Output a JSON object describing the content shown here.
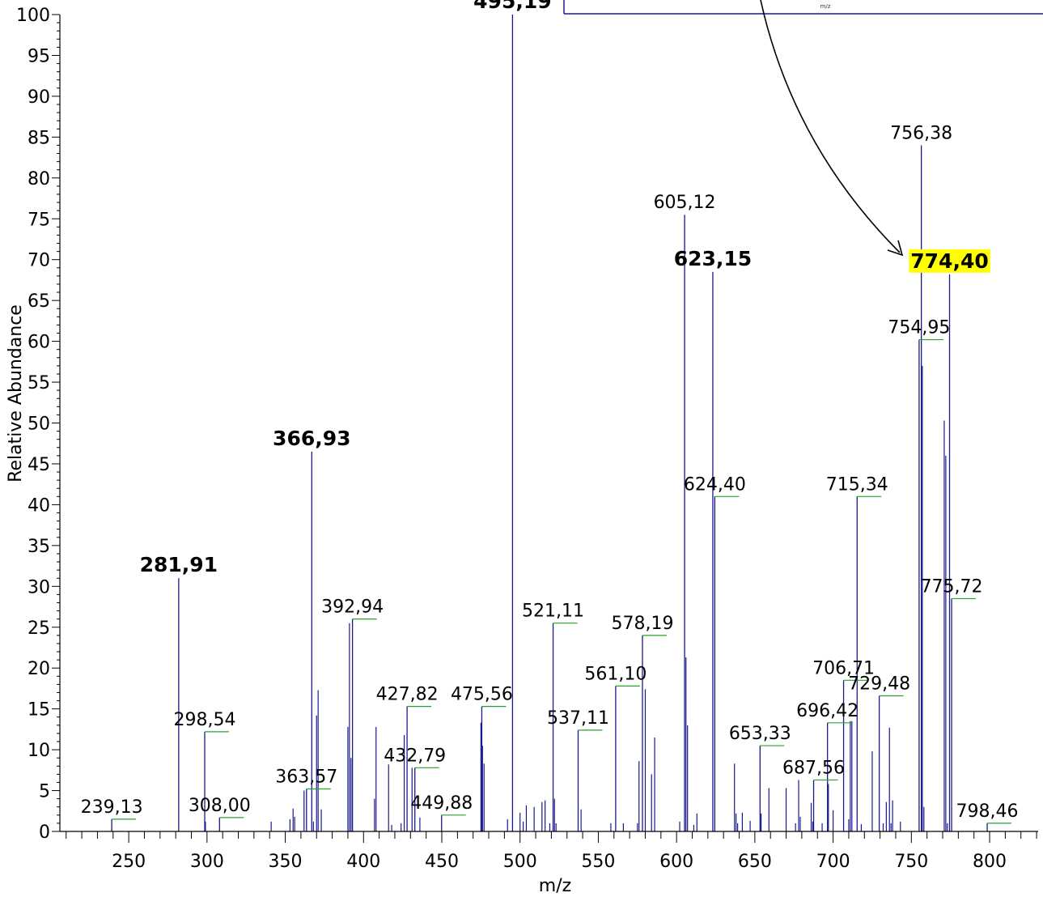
{
  "chart_data": {
    "type": "bar",
    "xlabel": "m/z",
    "ylabel": "Relative Abundance",
    "xlim": [
      206,
      831
    ],
    "ylim": [
      0,
      100
    ],
    "xticks": [
      250,
      300,
      350,
      400,
      450,
      500,
      550,
      600,
      650,
      700,
      750,
      800
    ],
    "yticks": [
      0,
      5,
      10,
      15,
      20,
      25,
      30,
      35,
      40,
      45,
      50,
      55,
      60,
      65,
      70,
      75,
      80,
      85,
      90,
      95,
      100
    ],
    "colors": {
      "peak": "#1a1a8c",
      "label_underline": "#2ca02c",
      "highlight": "#ffff00"
    },
    "inset": {
      "axis_label": "m/z"
    },
    "labeled_peaks": [
      {
        "mz": 239.13,
        "y": 1.5,
        "label": "239,13"
      },
      {
        "mz": 281.91,
        "y": 31,
        "label": "281,91",
        "bold": true
      },
      {
        "mz": 298.54,
        "y": 12.2,
        "label": "298,54"
      },
      {
        "mz": 308.0,
        "y": 1.7,
        "label": "308,00"
      },
      {
        "mz": 363.57,
        "y": 5.2,
        "label": "363,57"
      },
      {
        "mz": 366.93,
        "y": 46.5,
        "label": "366,93",
        "bold": true
      },
      {
        "mz": 392.94,
        "y": 26,
        "label": "392,94"
      },
      {
        "mz": 427.82,
        "y": 15.3,
        "label": "427,82"
      },
      {
        "mz": 432.79,
        "y": 7.8,
        "label": "432,79"
      },
      {
        "mz": 449.88,
        "y": 2,
        "label": "449,88"
      },
      {
        "mz": 475.56,
        "y": 15.3,
        "label": "475,56"
      },
      {
        "mz": 495.19,
        "y": 100,
        "label": "495,19",
        "bold": true
      },
      {
        "mz": 521.11,
        "y": 25.5,
        "label": "521,11"
      },
      {
        "mz": 537.11,
        "y": 12.4,
        "label": "537,11"
      },
      {
        "mz": 561.1,
        "y": 17.8,
        "label": "561,10"
      },
      {
        "mz": 578.19,
        "y": 24,
        "label": "578,19"
      },
      {
        "mz": 605.12,
        "y": 75.5,
        "label": "605,12"
      },
      {
        "mz": 623.15,
        "y": 68.5,
        "label": "623,15",
        "bold": true
      },
      {
        "mz": 624.4,
        "y": 41,
        "label": "624,40"
      },
      {
        "mz": 653.33,
        "y": 10.5,
        "label": "653,33"
      },
      {
        "mz": 687.56,
        "y": 6.3,
        "label": "687,56"
      },
      {
        "mz": 696.42,
        "y": 13.3,
        "label": "696,42"
      },
      {
        "mz": 706.71,
        "y": 18.5,
        "label": "706,71"
      },
      {
        "mz": 715.34,
        "y": 41,
        "label": "715,34"
      },
      {
        "mz": 729.48,
        "y": 16.6,
        "label": "729,48"
      },
      {
        "mz": 754.95,
        "y": 60.2,
        "label": "754,95"
      },
      {
        "mz": 756.38,
        "y": 84,
        "label": "756,38"
      },
      {
        "mz": 774.4,
        "y": 68.2,
        "label": "774,40",
        "bold": true,
        "highlight": true
      },
      {
        "mz": 775.72,
        "y": 28.5,
        "label": "775,72"
      },
      {
        "mz": 798.46,
        "y": 1,
        "label": "798,46"
      }
    ],
    "unlabeled_peaks": [
      [
        299,
        1.2
      ],
      [
        341,
        1.2
      ],
      [
        353,
        1.5
      ],
      [
        355,
        2.8
      ],
      [
        356,
        1.8
      ],
      [
        362,
        5.0
      ],
      [
        368,
        1.2
      ],
      [
        370,
        14.2
      ],
      [
        371,
        17.3
      ],
      [
        373,
        2.7
      ],
      [
        390,
        12.8
      ],
      [
        391,
        25.5
      ],
      [
        392,
        9.0
      ],
      [
        407,
        4.0
      ],
      [
        408,
        12.8
      ],
      [
        416,
        8.2
      ],
      [
        418,
        0.8
      ],
      [
        424,
        1.0
      ],
      [
        426,
        11.8
      ],
      [
        431,
        7.8
      ],
      [
        436,
        1.7
      ],
      [
        475,
        13.3
      ],
      [
        476,
        10.5
      ],
      [
        477,
        8.3
      ],
      [
        492,
        1.5
      ],
      [
        500,
        2.3
      ],
      [
        502,
        1.2
      ],
      [
        504,
        3.2
      ],
      [
        509,
        3.0
      ],
      [
        514,
        3.6
      ],
      [
        516,
        3.8
      ],
      [
        519,
        1.0
      ],
      [
        522,
        4.0
      ],
      [
        523,
        1.0
      ],
      [
        539,
        2.7
      ],
      [
        558,
        1.0
      ],
      [
        566,
        1.0
      ],
      [
        575,
        1.0
      ],
      [
        576,
        8.6
      ],
      [
        580,
        17.4
      ],
      [
        584,
        7.0
      ],
      [
        586,
        11.5
      ],
      [
        602,
        1.2
      ],
      [
        606,
        21.3
      ],
      [
        607,
        13.0
      ],
      [
        611,
        0.8
      ],
      [
        613,
        2.2
      ],
      [
        637,
        8.3
      ],
      [
        638,
        2.2
      ],
      [
        639,
        1.0
      ],
      [
        642,
        2.3
      ],
      [
        647,
        1.3
      ],
      [
        654,
        2.2
      ],
      [
        659,
        5.3
      ],
      [
        670,
        5.3
      ],
      [
        676,
        1.0
      ],
      [
        678,
        6.3
      ],
      [
        679,
        1.8
      ],
      [
        686,
        3.5
      ],
      [
        687,
        1.2
      ],
      [
        693,
        1.0
      ],
      [
        697,
        5.8
      ],
      [
        700,
        2.6
      ],
      [
        710,
        1.5
      ],
      [
        711,
        13.5
      ],
      [
        712,
        13.5
      ],
      [
        718,
        0.9
      ],
      [
        725,
        9.8
      ],
      [
        732,
        1.0
      ],
      [
        734,
        3.6
      ],
      [
        736,
        12.7
      ],
      [
        737,
        1.0
      ],
      [
        738,
        3.8
      ],
      [
        743,
        1.2
      ],
      [
        757,
        57.0
      ],
      [
        758,
        3.0
      ],
      [
        771,
        50.3
      ],
      [
        772,
        46.0
      ],
      [
        773,
        1.0
      ]
    ]
  }
}
